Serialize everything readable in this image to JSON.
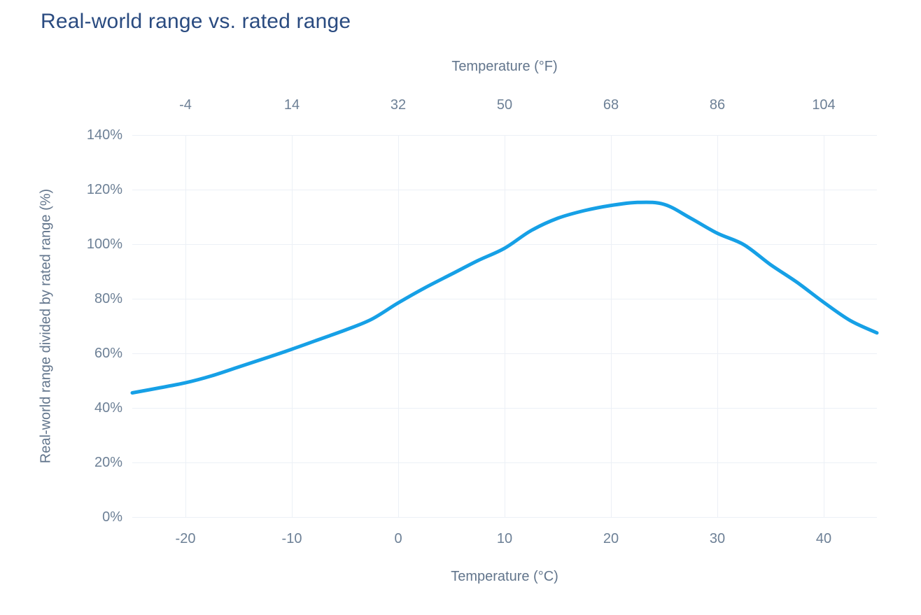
{
  "title": "Real-world range vs. rated range",
  "colors": {
    "title_text": "#2a4b80",
    "axis_text": "#62758c",
    "tick_text": "#6d8096",
    "gridline": "#ecf0f6",
    "series_line": "#16a0e6",
    "background": "#ffffff"
  },
  "chart_data": {
    "type": "line",
    "title": "Real-world range vs. rated range",
    "grid": true,
    "legend_position": "none",
    "x_axis_top": {
      "label": "Temperature (°F)",
      "ticks": [
        -4,
        14,
        32,
        50,
        68,
        86,
        104
      ],
      "range": [
        -13,
        113
      ]
    },
    "x_axis_bottom": {
      "label": "Temperature (°C)",
      "ticks": [
        -20,
        -10,
        0,
        10,
        20,
        30,
        40
      ],
      "range": [
        -25,
        45
      ]
    },
    "y_axis": {
      "label": "Real-world range divided by rated range (%)",
      "tick_labels": [
        "0%",
        "20%",
        "40%",
        "60%",
        "80%",
        "100%",
        "120%",
        "140%"
      ],
      "tick_values": [
        0,
        20,
        40,
        60,
        80,
        100,
        120,
        140
      ],
      "range": [
        0,
        140
      ]
    },
    "series": [
      {
        "name": "Real-world range divided by rated range (%)",
        "color": "#16a0e6",
        "x_unit": "°C",
        "points": [
          [
            -25,
            45.5
          ],
          [
            -22.5,
            47.3
          ],
          [
            -20,
            49.2
          ],
          [
            -17.5,
            51.8
          ],
          [
            -15,
            55
          ],
          [
            -12.5,
            58.2
          ],
          [
            -10,
            61.5
          ],
          [
            -7.5,
            65
          ],
          [
            -5,
            68.5
          ],
          [
            -2.5,
            72.5
          ],
          [
            0,
            78.5
          ],
          [
            2.5,
            84
          ],
          [
            5,
            89
          ],
          [
            7.5,
            94
          ],
          [
            10,
            98.5
          ],
          [
            12.5,
            105
          ],
          [
            15,
            109.5
          ],
          [
            17.5,
            112.3
          ],
          [
            20,
            114.2
          ],
          [
            22.5,
            115.3
          ],
          [
            25,
            114.6
          ],
          [
            27.5,
            109.5
          ],
          [
            30,
            104
          ],
          [
            32.5,
            99.8
          ],
          [
            35,
            92.5
          ],
          [
            37.5,
            86
          ],
          [
            40,
            78.7
          ],
          [
            42.5,
            72
          ],
          [
            45,
            67.5
          ]
        ],
        "peak": {
          "x_c": 22.5,
          "value_pct": 115.3
        }
      }
    ]
  }
}
